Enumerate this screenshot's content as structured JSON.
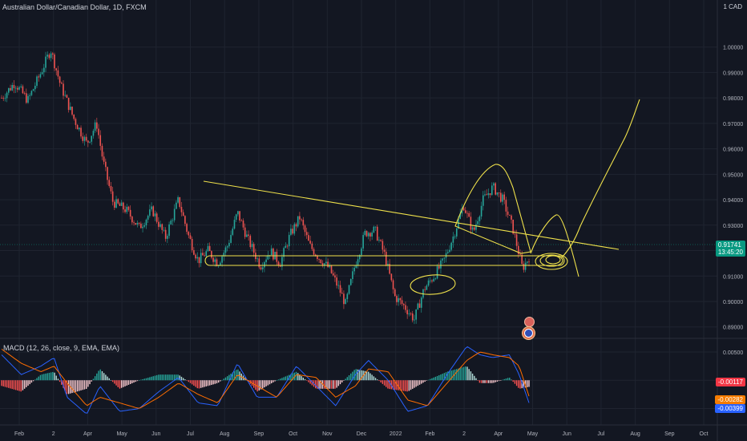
{
  "header": {
    "symbol_title": "Australian Dollar/Canadian Dollar, 1D, FXCM",
    "scale_currency": "1 CAD"
  },
  "price_tag": {
    "price": "0.91741",
    "countdown": "13:45:20"
  },
  "macd": {
    "title": "MACD (12, 26, close, 9, EMA, EMA)",
    "values": [
      "-0.00117",
      "-0.00282",
      "-0.00399"
    ],
    "value_colors": [
      "#f23645",
      "#f57c00",
      "#2962ff"
    ]
  },
  "colors": {
    "background": "#131722",
    "up": "#26a69a",
    "down": "#ef5350",
    "drawing": "#f0e24b",
    "macd_line": "#2962ff",
    "signal_line": "#ff6d00",
    "grid": "#1f2430"
  },
  "chart_data": [
    {
      "type": "candlestick",
      "title": "Australian Dollar/Canadian Dollar, 1D, FXCM",
      "x_ticks": [
        "Feb",
        "2",
        "Apr",
        "May",
        "Jun",
        "Jul",
        "Aug",
        "Sep",
        "Oct",
        "Nov",
        "Dec",
        "2022",
        "Feb",
        "2",
        "Apr",
        "May",
        "Jun",
        "Jul",
        "Aug",
        "Sep",
        "Oct"
      ],
      "y_ticks": [
        "1.00000",
        "0.99000",
        "0.98000",
        "0.97000",
        "0.96000",
        "0.95000",
        "0.94000",
        "0.93000",
        "0.92000",
        "0.91000",
        "0.90000",
        "0.89000"
      ],
      "ylim": [
        0.8855,
        1.0185
      ],
      "close_path": [
        {
          "t": 0,
          "v": 0.98
        },
        {
          "t": 4,
          "v": 0.986
        },
        {
          "t": 8,
          "v": 0.979
        },
        {
          "t": 12,
          "v": 0.99
        },
        {
          "t": 15,
          "v": 0.999
        },
        {
          "t": 18,
          "v": 0.985
        },
        {
          "t": 22,
          "v": 0.972
        },
        {
          "t": 26,
          "v": 0.962
        },
        {
          "t": 29,
          "v": 0.97
        },
        {
          "t": 31,
          "v": 0.955
        },
        {
          "t": 34,
          "v": 0.939
        },
        {
          "t": 38,
          "v": 0.936
        },
        {
          "t": 42,
          "v": 0.929
        },
        {
          "t": 46,
          "v": 0.936
        },
        {
          "t": 50,
          "v": 0.925
        },
        {
          "t": 54,
          "v": 0.94
        },
        {
          "t": 57,
          "v": 0.926
        },
        {
          "t": 60,
          "v": 0.916
        },
        {
          "t": 63,
          "v": 0.92
        },
        {
          "t": 66,
          "v": 0.915
        },
        {
          "t": 69,
          "v": 0.922
        },
        {
          "t": 72,
          "v": 0.935
        },
        {
          "t": 75,
          "v": 0.925
        },
        {
          "t": 79,
          "v": 0.914
        },
        {
          "t": 82,
          "v": 0.92
        },
        {
          "t": 85,
          "v": 0.915
        },
        {
          "t": 88,
          "v": 0.926
        },
        {
          "t": 91,
          "v": 0.933
        },
        {
          "t": 94,
          "v": 0.922
        },
        {
          "t": 97,
          "v": 0.917
        },
        {
          "t": 100,
          "v": 0.913
        },
        {
          "t": 103,
          "v": 0.905
        },
        {
          "t": 105,
          "v": 0.899
        },
        {
          "t": 108,
          "v": 0.915
        },
        {
          "t": 111,
          "v": 0.927
        },
        {
          "t": 114,
          "v": 0.928
        },
        {
          "t": 117,
          "v": 0.918
        },
        {
          "t": 120,
          "v": 0.902
        },
        {
          "t": 123,
          "v": 0.898
        },
        {
          "t": 126,
          "v": 0.893
        },
        {
          "t": 129,
          "v": 0.905
        },
        {
          "t": 132,
          "v": 0.91
        },
        {
          "t": 135,
          "v": 0.916
        },
        {
          "t": 138,
          "v": 0.926
        },
        {
          "t": 141,
          "v": 0.938
        },
        {
          "t": 144,
          "v": 0.927
        },
        {
          "t": 147,
          "v": 0.94
        },
        {
          "t": 150,
          "v": 0.945
        },
        {
          "t": 153,
          "v": 0.94
        },
        {
          "t": 156,
          "v": 0.929
        },
        {
          "t": 159,
          "v": 0.913
        },
        {
          "t": 161,
          "v": 0.9174
        }
      ],
      "t_max": 161
    },
    {
      "type": "line",
      "title": "MACD (12, 26, close, 9, EMA, EMA)",
      "y_ticks": [
        "0.00500",
        "0.00000",
        "-0.00500"
      ],
      "ylim": [
        -0.0079,
        0.0074
      ],
      "series": [
        {
          "name": "MACD",
          "color": "#2962ff",
          "points": [
            {
              "t": 0,
              "v": 0.0045
            },
            {
              "t": 6,
              "v": 0.001
            },
            {
              "t": 12,
              "v": 0.0025
            },
            {
              "t": 16,
              "v": 0.004
            },
            {
              "t": 20,
              "v": -0.003
            },
            {
              "t": 26,
              "v": -0.006
            },
            {
              "t": 30,
              "v": -0.001
            },
            {
              "t": 36,
              "v": -0.0055
            },
            {
              "t": 42,
              "v": -0.005
            },
            {
              "t": 48,
              "v": -0.002
            },
            {
              "t": 54,
              "v": 0.0005
            },
            {
              "t": 60,
              "v": -0.004
            },
            {
              "t": 66,
              "v": -0.0045
            },
            {
              "t": 72,
              "v": 0.003
            },
            {
              "t": 78,
              "v": -0.003
            },
            {
              "t": 84,
              "v": -0.003
            },
            {
              "t": 90,
              "v": 0.0025
            },
            {
              "t": 96,
              "v": -0.001
            },
            {
              "t": 102,
              "v": -0.0045
            },
            {
              "t": 108,
              "v": 0.001
            },
            {
              "t": 112,
              "v": 0.0035
            },
            {
              "t": 118,
              "v": 0.0
            },
            {
              "t": 124,
              "v": -0.0055
            },
            {
              "t": 130,
              "v": -0.0045
            },
            {
              "t": 136,
              "v": 0.001
            },
            {
              "t": 142,
              "v": 0.006
            },
            {
              "t": 146,
              "v": 0.0045
            },
            {
              "t": 150,
              "v": 0.004
            },
            {
              "t": 155,
              "v": 0.0045
            },
            {
              "t": 158,
              "v": 0.001
            },
            {
              "t": 161,
              "v": -0.00399
            }
          ]
        },
        {
          "name": "Signal",
          "color": "#ff6d00",
          "points": [
            {
              "t": 0,
              "v": 0.0055
            },
            {
              "t": 6,
              "v": 0.003
            },
            {
              "t": 12,
              "v": 0.0015
            },
            {
              "t": 16,
              "v": 0.0025
            },
            {
              "t": 20,
              "v": -0.0005
            },
            {
              "t": 26,
              "v": -0.0045
            },
            {
              "t": 30,
              "v": -0.003
            },
            {
              "t": 36,
              "v": -0.004
            },
            {
              "t": 42,
              "v": -0.005
            },
            {
              "t": 48,
              "v": -0.003
            },
            {
              "t": 54,
              "v": -0.0005
            },
            {
              "t": 60,
              "v": -0.0025
            },
            {
              "t": 66,
              "v": -0.004
            },
            {
              "t": 72,
              "v": 0.001
            },
            {
              "t": 78,
              "v": -0.001
            },
            {
              "t": 84,
              "v": -0.003
            },
            {
              "t": 90,
              "v": 0.001
            },
            {
              "t": 96,
              "v": 0.0005
            },
            {
              "t": 102,
              "v": -0.003
            },
            {
              "t": 108,
              "v": -0.001
            },
            {
              "t": 112,
              "v": 0.002
            },
            {
              "t": 118,
              "v": 0.0015
            },
            {
              "t": 124,
              "v": -0.0035
            },
            {
              "t": 130,
              "v": -0.0045
            },
            {
              "t": 136,
              "v": -0.0005
            },
            {
              "t": 142,
              "v": 0.0035
            },
            {
              "t": 146,
              "v": 0.005
            },
            {
              "t": 150,
              "v": 0.0045
            },
            {
              "t": 155,
              "v": 0.004
            },
            {
              "t": 158,
              "v": 0.0025
            },
            {
              "t": 161,
              "v": -0.00282
            }
          ]
        }
      ],
      "histogram_last": -0.00117
    }
  ]
}
